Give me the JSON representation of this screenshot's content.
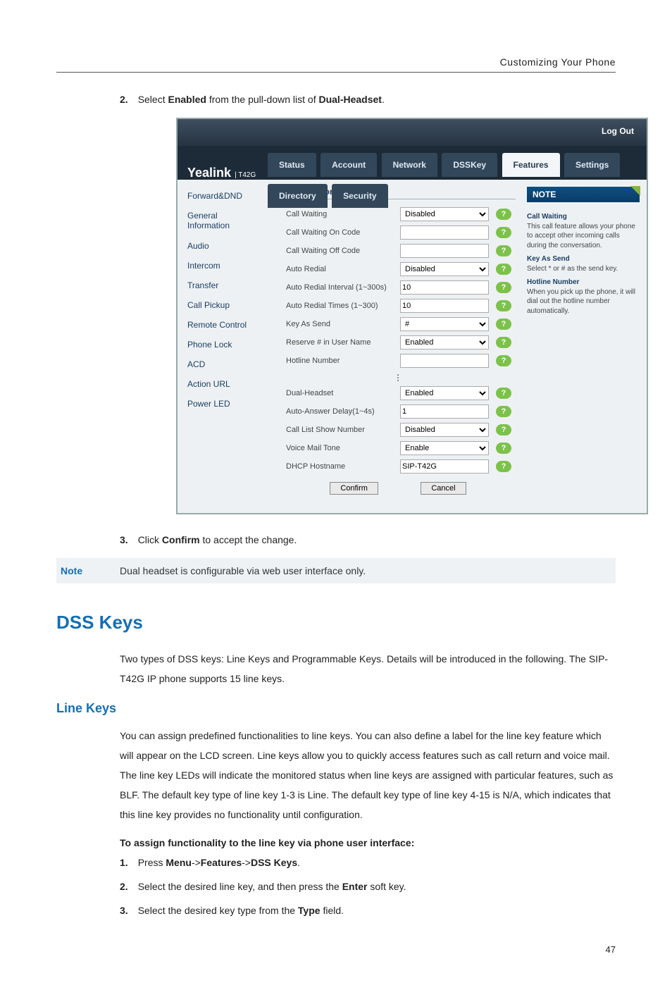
{
  "header": {
    "breadcrumb": "Customizing Your Phone"
  },
  "step2": {
    "num": "2.",
    "pre": "Select ",
    "bold1": "Enabled",
    "mid": " from the pull-down list of ",
    "bold2": "Dual-Headset",
    "post": "."
  },
  "shot": {
    "logout": "Log Out",
    "logo": "Yealink",
    "logo_sub": "T42G",
    "tabs": [
      "Status",
      "Account",
      "Network",
      "DSSKey",
      "Features",
      "Settings",
      "Directory",
      "Security"
    ],
    "active_tab": "Features",
    "sidemenu": [
      "Forward&DND",
      "General Information",
      "Audio",
      "Intercom",
      "Transfer",
      "Call Pickup",
      "Remote Control",
      "Phone Lock",
      "ACD",
      "Action URL",
      "Power LED"
    ],
    "gen_head": "General Information",
    "rows1": [
      {
        "label": "Call Waiting",
        "type": "select",
        "value": "Disabled"
      },
      {
        "label": "Call Waiting On Code",
        "type": "input",
        "value": ""
      },
      {
        "label": "Call Waiting Off Code",
        "type": "input",
        "value": ""
      },
      {
        "label": "Auto Redial",
        "type": "select",
        "value": "Disabled"
      },
      {
        "label": "Auto Redial Interval (1~300s)",
        "type": "input",
        "value": "10"
      },
      {
        "label": "Auto Redial Times (1~300)",
        "type": "input",
        "value": "10"
      },
      {
        "label": "Key As Send",
        "type": "select",
        "value": "#"
      },
      {
        "label": "Reserve # in User Name",
        "type": "select",
        "value": "Enabled"
      },
      {
        "label": "Hotline Number",
        "type": "input",
        "value": ""
      }
    ],
    "rows2": [
      {
        "label": "Dual-Headset",
        "type": "select",
        "value": "Enabled"
      },
      {
        "label": "Auto-Answer Delay(1~4s)",
        "type": "input",
        "value": "1"
      },
      {
        "label": "Call List Show Number",
        "type": "select",
        "value": "Disabled"
      },
      {
        "label": "Voice Mail Tone",
        "type": "select",
        "value": "Enable"
      },
      {
        "label": "DHCP Hostname",
        "type": "input",
        "value": "SIP-T42G"
      }
    ],
    "confirm": "Confirm",
    "cancel": "Cancel",
    "note_head": "NOTE",
    "notes": [
      {
        "h": "Call Waiting",
        "b": "This call feature allows your phone to accept other incoming calls during the conversation."
      },
      {
        "h": "Key As Send",
        "b": "Select * or # as the send key."
      },
      {
        "h": "Hotline Number",
        "b": "When you pick up the phone, it will dial out the hotline number automatically."
      }
    ]
  },
  "step3": {
    "num": "3.",
    "pre": "Click ",
    "bold": "Confirm",
    "post": " to accept the change."
  },
  "notebar": {
    "label": "Note",
    "text": "Dual headset is configurable via web user interface only."
  },
  "dss_heading": "DSS Keys",
  "dss_para": "Two types of DSS keys: Line Keys and Programmable Keys. Details will be introduced in the following. The SIP-T42G IP phone supports 15 line keys.",
  "linekeys_heading": "Line Keys",
  "linekeys_para": "You can assign predefined functionalities to line keys. You can also define a label for the line key feature which will appear on the LCD screen. Line keys allow you to quickly access features such as call return and voice mail. The line key LEDs will indicate the monitored status when line keys are assigned with particular features, such as BLF. The default key type of line key 1-3 is Line. The default key type of line key 4-15 is N/A, which indicates that this line key provides no functionality until configuration.",
  "assign_heading": "To assign functionality to the line key via phone user interface:",
  "ol": [
    {
      "num": "1.",
      "pre": "Press ",
      "b1": "Menu",
      "mid1": "->",
      "b2": "Features",
      "mid2": "->",
      "b3": "DSS Keys",
      "post": "."
    },
    {
      "num": "2.",
      "pre": "Select the desired line key, and then press the ",
      "b1": "Enter",
      "post": " soft key."
    },
    {
      "num": "3.",
      "pre": "Select the desired key type from the ",
      "b1": "Type",
      "post": " field."
    }
  ],
  "pagenum": "47",
  "colors": {
    "brand": "#1370b4"
  }
}
